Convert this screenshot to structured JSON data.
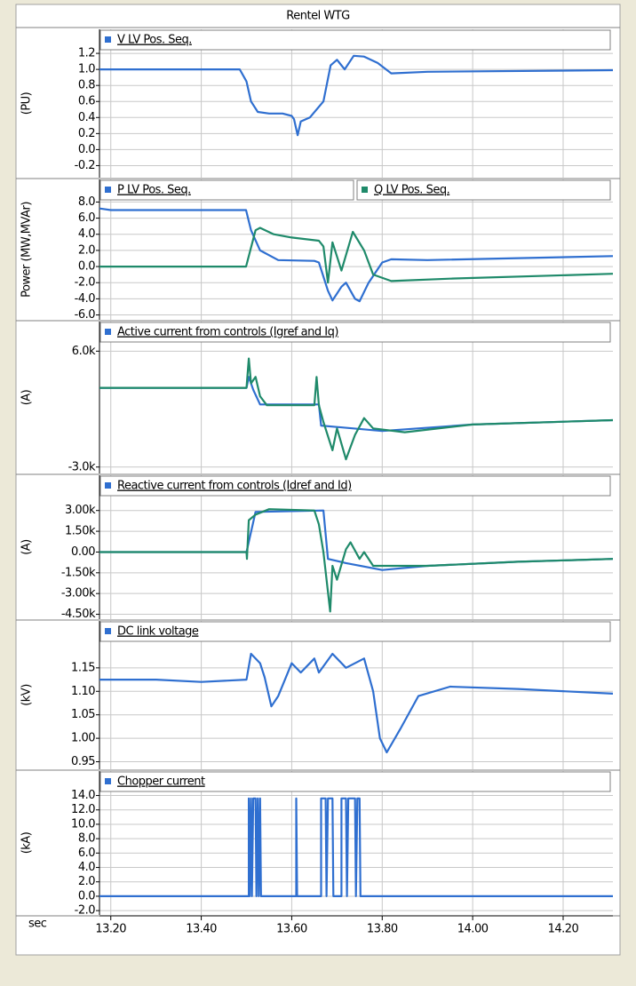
{
  "title": "Rentel WTG",
  "x_axis": {
    "label": "sec",
    "xlim": [
      13.175,
      14.31
    ],
    "xticks": [
      {
        "value": 13.2,
        "label": "13.20"
      },
      {
        "value": 13.4,
        "label": "13.40"
      },
      {
        "value": 13.6,
        "label": "13.60"
      },
      {
        "value": 13.8,
        "label": "13.80"
      },
      {
        "value": 14.0,
        "label": "14.00"
      },
      {
        "value": 14.2,
        "label": "14.20"
      }
    ]
  },
  "chart_data": [
    {
      "type": "line",
      "ylabel": "(PU)",
      "ylim": [
        -0.35,
        1.5
      ],
      "yticks": [
        1.2,
        {
          "value": 1.0,
          "label": "1.0"
        },
        0.8,
        0.6,
        0.4,
        0.2,
        {
          "value": 0.0,
          "label": "0.0"
        },
        -0.2
      ],
      "series": [
        {
          "name": "V LV Pos. Seq.",
          "color": "#2f6fd0",
          "x": [
            13.175,
            13.485,
            13.5,
            13.51,
            13.525,
            13.55,
            13.58,
            13.6,
            13.605,
            13.613,
            13.62,
            13.64,
            13.67,
            13.686,
            13.7,
            13.717,
            13.737,
            13.76,
            13.79,
            13.82,
            13.9,
            14.31
          ],
          "values": [
            1.0,
            1.0,
            0.85,
            0.6,
            0.47,
            0.45,
            0.45,
            0.42,
            0.38,
            0.18,
            0.35,
            0.4,
            0.6,
            1.05,
            1.12,
            1.0,
            1.17,
            1.16,
            1.08,
            0.95,
            0.97,
            0.99
          ]
        }
      ]
    },
    {
      "type": "line",
      "ylabel": "Power (MW,MVAr)",
      "ylim": [
        -6.6,
        10.8
      ],
      "yticks": [
        {
          "value": 8.0,
          "label": "8.0"
        },
        {
          "value": 6.0,
          "label": "6.0"
        },
        {
          "value": 4.0,
          "label": "4.0"
        },
        {
          "value": 2.0,
          "label": "2.0"
        },
        {
          "value": 0.0,
          "label": "0.0"
        },
        {
          "value": -2.0,
          "label": "-2.0"
        },
        {
          "value": -4.0,
          "label": "-4.0"
        },
        {
          "value": -6.0,
          "label": "-6.0"
        }
      ],
      "series": [
        {
          "name": "P LV Pos. Seq.",
          "color": "#2f6fd0",
          "x": [
            13.175,
            13.2,
            13.499,
            13.51,
            13.53,
            13.57,
            13.65,
            13.66,
            13.68,
            13.69,
            13.71,
            13.72,
            13.74,
            13.75,
            13.77,
            13.8,
            13.82,
            13.9,
            14.31
          ],
          "values": [
            7.2,
            7.0,
            7.0,
            4.5,
            2.0,
            0.8,
            0.7,
            0.5,
            -3.0,
            -4.2,
            -2.5,
            -2.0,
            -4.0,
            -4.3,
            -2.0,
            0.5,
            0.9,
            0.8,
            1.3
          ]
        },
        {
          "name": "Q LV Pos. Seq.",
          "color": "#1f8a6a",
          "x": [
            13.175,
            13.499,
            13.52,
            13.53,
            13.56,
            13.6,
            13.66,
            13.67,
            13.68,
            13.69,
            13.71,
            13.735,
            13.76,
            13.78,
            13.82,
            13.95,
            14.31
          ],
          "values": [
            0.0,
            0.0,
            4.5,
            4.8,
            4.0,
            3.6,
            3.2,
            2.5,
            -2.0,
            3.0,
            -0.5,
            4.3,
            2.0,
            -1.0,
            -1.8,
            -1.5,
            -0.9
          ]
        }
      ]
    },
    {
      "type": "line",
      "ylabel": "(A)",
      "ylim": [
        -3500,
        8300
      ],
      "yticks": [
        {
          "value": 6000,
          "label": "6.0k"
        },
        {
          "value": -3000,
          "label": "-3.0k"
        }
      ],
      "series": [
        {
          "name": "Active current from controls (Igref and Iq)",
          "color": "#2f6fd0",
          "x": [
            13.175,
            13.5,
            13.505,
            13.515,
            13.53,
            13.66,
            13.665,
            13.8,
            14.0,
            14.31
          ],
          "values": [
            3150,
            3150,
            4000,
            3000,
            1860,
            1860,
            216,
            -200,
            300,
            640
          ]
        },
        {
          "name": "",
          "color": "#1f8a6a",
          "x": [
            13.175,
            13.5,
            13.505,
            13.51,
            13.52,
            13.53,
            13.545,
            13.65,
            13.655,
            13.66,
            13.67,
            13.69,
            13.7,
            13.72,
            13.74,
            13.76,
            13.78,
            13.85,
            14.0,
            14.31
          ],
          "values": [
            3150,
            3150,
            5430,
            3500,
            4000,
            2500,
            1800,
            1800,
            4000,
            1800,
            500,
            -1700,
            0,
            -2400,
            -500,
            800,
            0,
            -300,
            300,
            640
          ]
        }
      ]
    },
    {
      "type": "line",
      "ylabel": "(A)",
      "ylim": [
        -4850,
        5550
      ],
      "yticks": [
        {
          "value": 3000,
          "label": "3.00k"
        },
        {
          "value": 1500,
          "label": "1.50k"
        },
        {
          "value": 0,
          "label": "0.00"
        },
        {
          "value": -1500,
          "label": "-1.50k"
        },
        {
          "value": -3000,
          "label": "-3.00k"
        },
        {
          "value": -4500,
          "label": "-4.50k"
        }
      ],
      "series": [
        {
          "name": "Reactive current from controls (Idref and Id)",
          "color": "#2f6fd0",
          "x": [
            13.175,
            13.5,
            13.52,
            13.67,
            13.68,
            13.72,
            13.8,
            13.9,
            14.1,
            14.31
          ],
          "values": [
            0,
            0,
            2900,
            3000,
            -500,
            -800,
            -1300,
            -1000,
            -700,
            -500
          ]
        },
        {
          "name": "",
          "color": "#1f8a6a",
          "x": [
            13.175,
            13.5,
            13.501,
            13.505,
            13.52,
            13.55,
            13.65,
            13.66,
            13.67,
            13.685,
            13.69,
            13.7,
            13.72,
            13.73,
            13.75,
            13.76,
            13.78,
            13.9,
            14.1,
            14.31
          ],
          "values": [
            0,
            0,
            -500,
            2300,
            2700,
            3100,
            3000,
            2000,
            0,
            -4300,
            -1000,
            -2000,
            200,
            700,
            -500,
            0,
            -1000,
            -1000,
            -700,
            -500
          ]
        }
      ]
    },
    {
      "type": "line",
      "ylabel": "(kV)",
      "ylim": [
        0.934,
        1.25
      ],
      "yticks": [
        1.15,
        {
          "value": 1.1,
          "label": "1.10"
        },
        1.05,
        {
          "value": 1.0,
          "label": "1.00"
        },
        0.95
      ],
      "series": [
        {
          "name": "DC link voltage",
          "color": "#2f6fd0",
          "x": [
            13.175,
            13.3,
            13.4,
            13.5,
            13.51,
            13.53,
            13.54,
            13.555,
            13.57,
            13.6,
            13.62,
            13.65,
            13.66,
            13.69,
            13.72,
            13.76,
            13.78,
            13.795,
            13.81,
            13.84,
            13.88,
            13.95,
            14.1,
            14.31
          ],
          "values": [
            1.125,
            1.125,
            1.12,
            1.125,
            1.18,
            1.16,
            1.13,
            1.068,
            1.09,
            1.16,
            1.14,
            1.17,
            1.14,
            1.18,
            1.15,
            1.17,
            1.1,
            1.0,
            0.97,
            1.02,
            1.09,
            1.11,
            1.105,
            1.095
          ]
        }
      ]
    },
    {
      "type": "line",
      "ylabel": "(kA)",
      "ylim": [
        -2.6,
        17.4
      ],
      "yticks": [
        {
          "value": 14.0,
          "label": "14.0"
        },
        {
          "value": 12.0,
          "label": "12.0"
        },
        {
          "value": 10.0,
          "label": "10.0"
        },
        {
          "value": 8.0,
          "label": "8.0"
        },
        {
          "value": 6.0,
          "label": "6.0"
        },
        {
          "value": 4.0,
          "label": "4.0"
        },
        {
          "value": 2.0,
          "label": "2.0"
        },
        {
          "value": 0.0,
          "label": "0.0"
        },
        {
          "value": -2.0,
          "label": "-2.0"
        }
      ],
      "series": [
        {
          "name": "Chopper current",
          "color": "#2f6fd0",
          "x": [
            13.175,
            13.505,
            13.505,
            13.507,
            13.51,
            13.512,
            13.515,
            13.52,
            13.522,
            13.525,
            13.527,
            13.53,
            13.532,
            13.61,
            13.61,
            13.612,
            13.665,
            13.665,
            13.675,
            13.677,
            13.68,
            13.69,
            13.692,
            13.71,
            13.71,
            13.72,
            13.722,
            13.725,
            13.74,
            13.742,
            13.745,
            13.75,
            13.752,
            14.31
          ],
          "values": [
            0,
            0,
            13.6,
            0,
            13.6,
            0,
            13.6,
            13.6,
            0,
            13.6,
            0,
            13.6,
            0,
            0,
            13.6,
            0,
            0,
            13.6,
            13.6,
            0,
            13.6,
            13.6,
            0,
            0,
            13.6,
            13.6,
            0,
            13.6,
            13.6,
            0,
            13.6,
            13.6,
            0,
            0
          ]
        }
      ]
    }
  ]
}
